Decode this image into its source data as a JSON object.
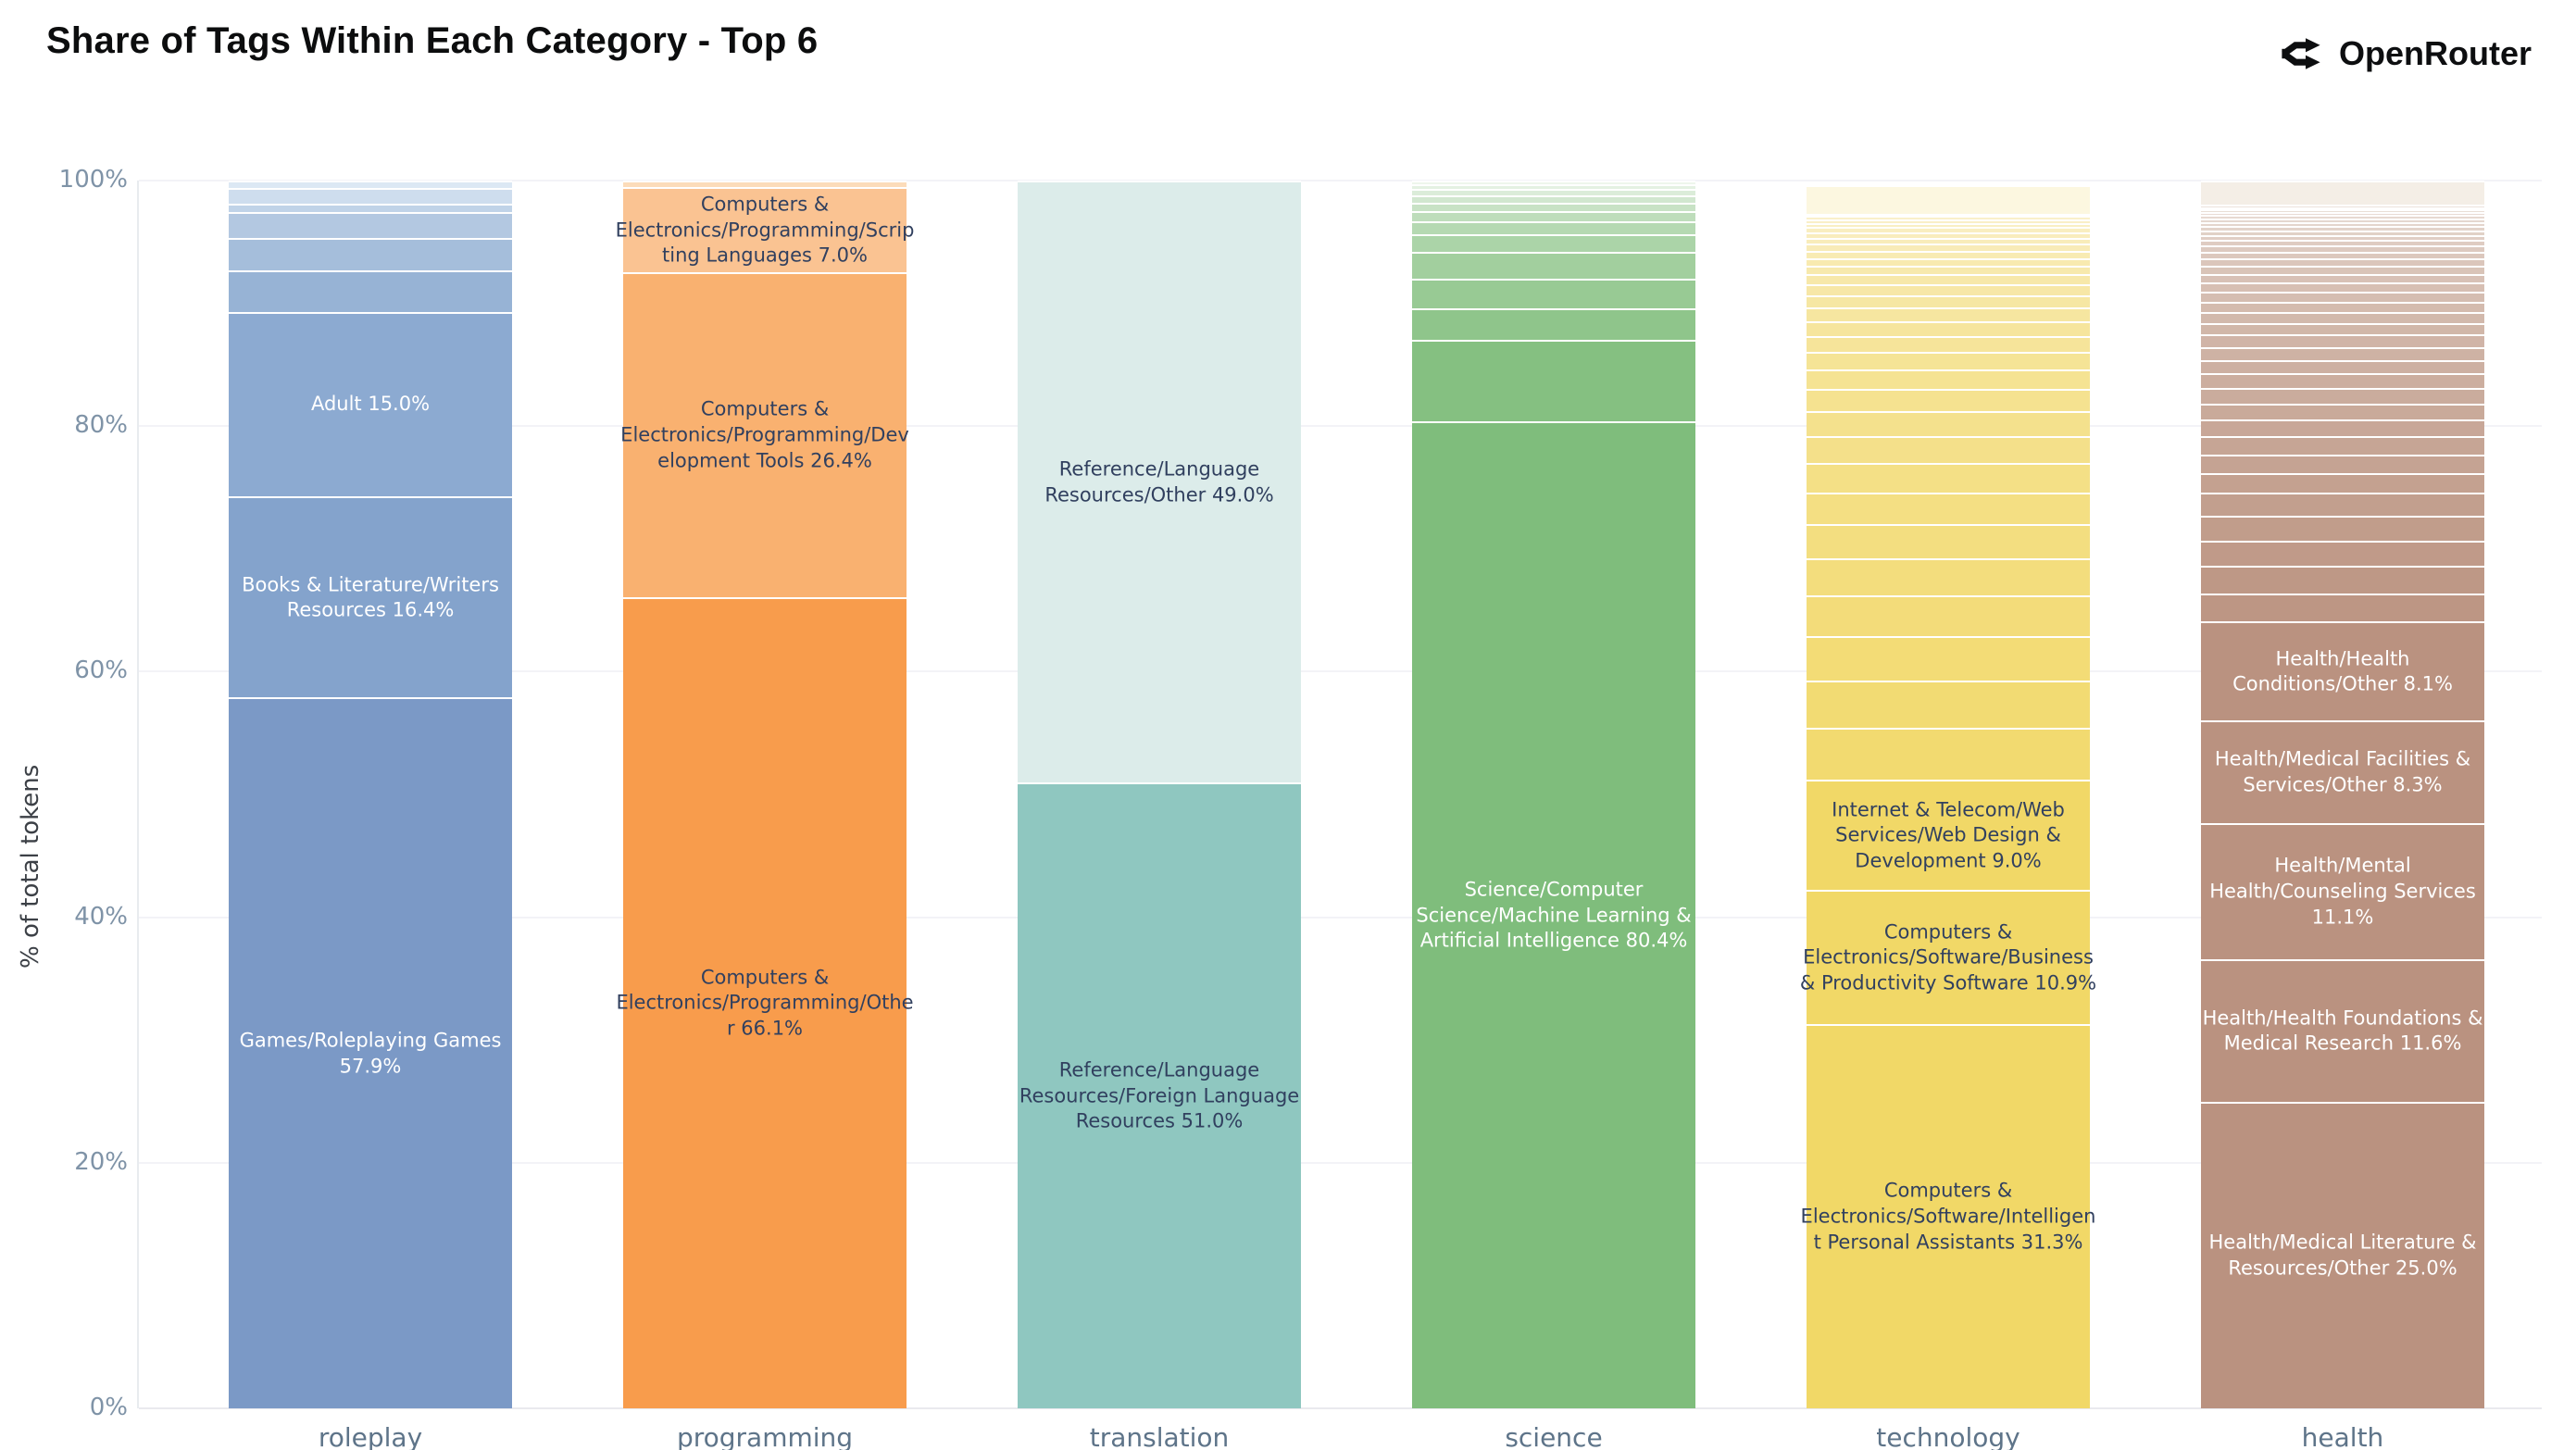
{
  "header": {
    "title": "Share of Tags Within Each Category - Top 6",
    "brand": "OpenRouter"
  },
  "y_axis": {
    "title": "% of total tokens",
    "ticks": [
      "0%",
      "20%",
      "40%",
      "60%",
      "80%",
      "100%"
    ],
    "range": [
      0,
      100
    ]
  },
  "chart_data": {
    "type": "bar",
    "stacked": true,
    "normalized": "percent",
    "grid": true,
    "legend": "none",
    "title": "Share of Tags Within Each Category - Top 6",
    "ylabel": "% of total tokens",
    "ylim": [
      0,
      100
    ],
    "categories": [
      "roleplay",
      "programming",
      "translation",
      "science",
      "technology",
      "health"
    ],
    "bars": [
      {
        "category": "roleplay",
        "segments": [
          {
            "label": "Games/Roleplaying Games",
            "value": 57.9,
            "color": "#7b99c6",
            "text_color": "#ffffff",
            "show_label": true
          },
          {
            "label": "Books & Literature/Writers Resources",
            "value": 16.4,
            "color": "#84a3cc",
            "text_color": "#ffffff",
            "show_label": true
          },
          {
            "label": "Adult",
            "value": 15.0,
            "color": "#8caad1",
            "text_color": "#ffffff",
            "show_label": true
          }
        ],
        "tail": {
          "values": [
            3.4,
            2.6,
            2.1,
            0.7,
            1.3,
            0.6
          ],
          "color_from": "#97b3d5",
          "color_to": "#dce8f4"
        }
      },
      {
        "category": "programming",
        "segments": [
          {
            "label": "Computers & Electronics/Programming/Other",
            "value": 66.1,
            "color": "#f89c4c",
            "text_color": "#31405f",
            "show_label": true
          },
          {
            "label": "Computers & Electronics/Programming/Development Tools",
            "value": 26.4,
            "color": "#f9b170",
            "text_color": "#31405f",
            "show_label": true
          },
          {
            "label": "Computers & Electronics/Programming/Scripting Languages",
            "value": 7.0,
            "color": "#fac392",
            "text_color": "#31405f",
            "show_label": true
          }
        ],
        "tail": {
          "values": [
            0.5
          ],
          "color_from": "#fcdcba",
          "color_to": "#fcdcba"
        }
      },
      {
        "category": "translation",
        "segments": [
          {
            "label": "Reference/Language Resources/Foreign Language Resources",
            "value": 51.0,
            "color": "#8fc7c0",
            "text_color": "#31405f",
            "show_label": true
          },
          {
            "label": "Reference/Language Resources/Other",
            "value": 49.0,
            "color": "#dcecea",
            "text_color": "#31405f",
            "show_label": true
          }
        ],
        "tail": {
          "values": [],
          "color_from": "#8fc7c0",
          "color_to": "#8fc7c0"
        }
      },
      {
        "category": "science",
        "segments": [
          {
            "label": "Science/Computer Science/Machine Learning & Artificial Intelligence",
            "value": 80.4,
            "color": "#7fbd7c",
            "text_color": "#ffffff",
            "show_label": true
          }
        ],
        "tail": {
          "values": [
            6.6,
            2.6,
            2.4,
            2.2,
            1.4,
            1.1,
            0.8,
            0.7,
            0.6,
            0.5,
            0.4,
            0.3
          ],
          "color_from": "#85c081",
          "color_to": "#eef6ec"
        }
      },
      {
        "category": "technology",
        "segments": [
          {
            "label": "Computers & Electronics/Software/Intelligent Personal Assistants",
            "value": 31.3,
            "color": "#f1d867",
            "text_color": "#31405f",
            "show_label": true
          },
          {
            "label": "Computers & Electronics/Software/Business & Productivity Software",
            "value": 10.9,
            "color": "#f1d867",
            "text_color": "#31405f",
            "show_label": true
          },
          {
            "label": "Internet & Telecom/Web Services/Web Design & Development",
            "value": 9.0,
            "color": "#f1d867",
            "text_color": "#31405f",
            "show_label": true
          }
        ],
        "tail": {
          "values": [
            4.2,
            3.9,
            3.6,
            3.3,
            3.0,
            2.8,
            2.6,
            2.4,
            2.2,
            2.0,
            1.8,
            1.6,
            1.45,
            1.3,
            1.2,
            1.1,
            1.0,
            0.9,
            0.8,
            0.7,
            0.65,
            0.6,
            0.55,
            0.5,
            0.45,
            0.4,
            0.35,
            0.3,
            0.25,
            0.2
          ],
          "color_from": "#f2da70",
          "color_to": "#faf1cd"
        },
        "cap": {
          "value": 2.3,
          "color": "#fcf7e0"
        }
      },
      {
        "category": "health",
        "segments": [
          {
            "label": "Health/Medical Literature & Resources/Other",
            "value": 25.0,
            "color": "#ba9280",
            "text_color": "#ffffff",
            "show_label": true
          },
          {
            "label": "Health/Health Foundations & Medical Research",
            "value": 11.6,
            "color": "#ba9280",
            "text_color": "#ffffff",
            "show_label": true
          },
          {
            "label": "Health/Mental Health/Counseling Services",
            "value": 11.1,
            "color": "#ba9280",
            "text_color": "#ffffff",
            "show_label": true
          },
          {
            "label": "Health/Medical Facilities & Services/Other",
            "value": 8.3,
            "color": "#ba9280",
            "text_color": "#ffffff",
            "show_label": true
          },
          {
            "label": "Health/Health Conditions/Other",
            "value": 8.1,
            "color": "#ba9280",
            "text_color": "#ffffff",
            "show_label": true
          }
        ],
        "tail": {
          "values": [
            2.3,
            2.2,
            2.1,
            2.0,
            1.9,
            1.6,
            1.5,
            1.45,
            1.4,
            1.3,
            1.25,
            1.2,
            1.1,
            1.05,
            1.0,
            0.95,
            0.9,
            0.85,
            0.8,
            0.75,
            0.7,
            0.65,
            0.6,
            0.55,
            0.5,
            0.45,
            0.4,
            0.38,
            0.35,
            0.32,
            0.3,
            0.28,
            0.25,
            0.22,
            0.2,
            0.18
          ],
          "color_from": "#bd9684",
          "color_to": "#ece2db"
        },
        "cap": {
          "value": 2.0,
          "color": "#f4eee6"
        }
      }
    ]
  }
}
